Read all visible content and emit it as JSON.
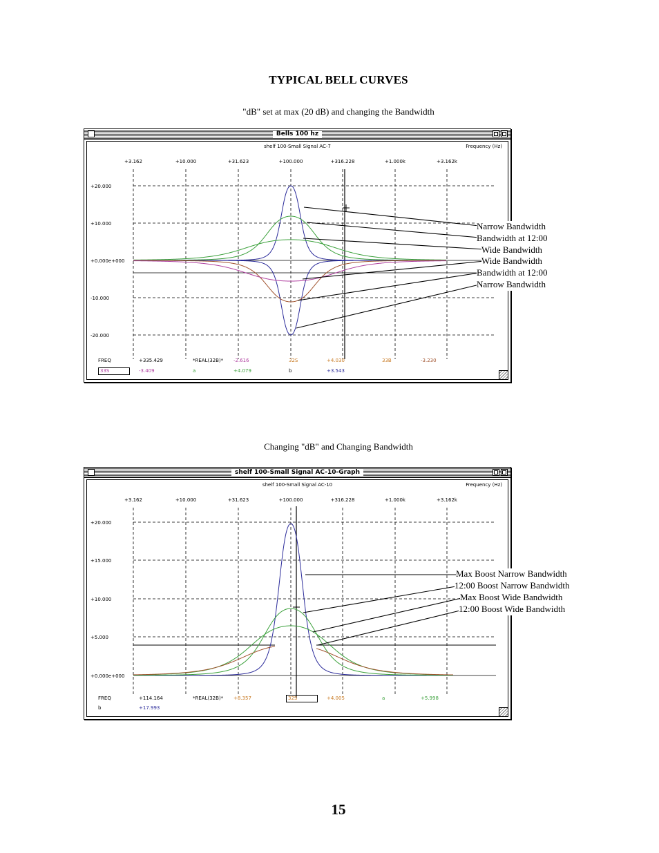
{
  "heading": "TYPICAL BELL CURVES",
  "caption1": "\"dB\" set at max (20 dB) and changing the Bandwidth",
  "caption2": "Changing \"dB\" and Changing Bandwidth",
  "page_number": "15",
  "window1": {
    "title": "Bells 100 hz",
    "pane_header": "shelf 100-Small Signal AC-7",
    "frequency_label": "Frequency   (Hz)",
    "x_ticks": [
      "+3.162",
      "+10.000",
      "+31.623",
      "+100.000",
      "+316.228",
      "+1.000k",
      "+3.162k"
    ],
    "y_ticks": [
      "+20.000",
      "+10.000",
      "+0.000e+000",
      "-10.000",
      "-20.000"
    ],
    "readout_row1": [
      "FREQ",
      "+335.429",
      "*REAL(32B)*",
      "-2.616",
      "32S",
      "+4.030",
      "33B",
      "-3.230"
    ],
    "readout_row2": [
      "33S",
      "-3.409",
      "a",
      "+4.079",
      "b",
      "+3.543"
    ],
    "labels": [
      "Narrow Bandwidth",
      "Bandwidth at 12:00",
      "Wide Bandwidth",
      "Wide Bandwidth",
      "Bandwidth at 12:00",
      "Narrow Bandwidth"
    ]
  },
  "window2": {
    "title": "shelf 100-Small Signal AC-10-Graph",
    "pane_header": "shelf 100-Small Signal AC-10",
    "frequency_label": "Frequency   (Hz)",
    "x_ticks": [
      "+3.162",
      "+10.000",
      "+31.623",
      "+100.000",
      "+316.228",
      "+1.000k",
      "+3.162k"
    ],
    "y_ticks": [
      "+20.000",
      "+15.000",
      "+10.000",
      "+5.000",
      "+0.000e+000"
    ],
    "readout_row1": [
      "FREQ",
      "+114.164",
      "*REAL(32B)*",
      "+8.357",
      "32S",
      "+4.005",
      "a",
      "+5.998"
    ],
    "readout_row2": [
      "b",
      "+17.993"
    ],
    "labels": [
      "Max Boost Narrow Bandwidth",
      "12:00 Boost Narrow Bandwidth",
      "Max Boost Wide Bandwidth",
      "12:00 Boost Wide Bandwidth"
    ]
  },
  "colors": {
    "narrow": "#2b2b9a",
    "green": "#3aa03a",
    "brown": "#a0522d",
    "magenta": "#b040a0",
    "orange": "#c87820"
  }
}
